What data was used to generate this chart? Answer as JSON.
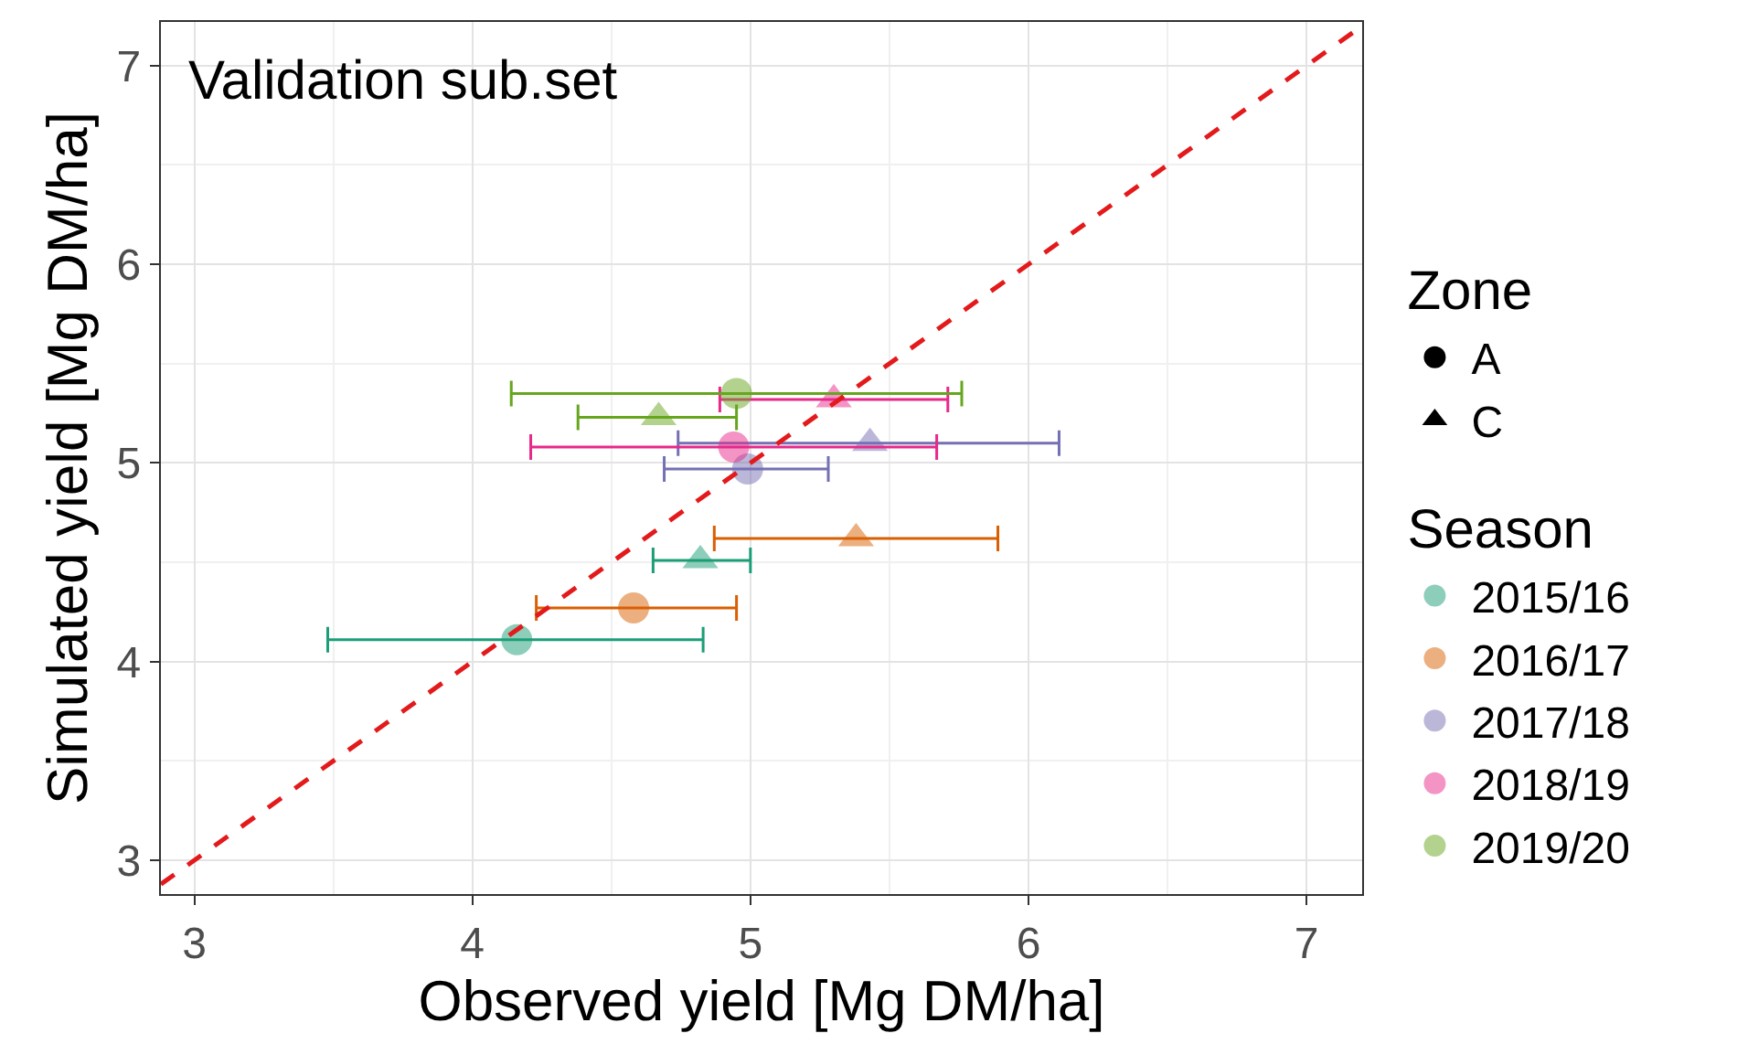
{
  "chart_data": {
    "type": "scatter",
    "xlabel": "Observed yield [Mg DM/ha]",
    "ylabel": "Simulated yield [Mg DM/ha]",
    "annotations": [
      "Validation sub.set"
    ],
    "legend_title": [
      "Zone",
      "Season"
    ],
    "xlim": [
      2.88,
      7.2
    ],
    "ylim": [
      2.83,
      7.22
    ],
    "xticks": [
      3,
      4,
      5,
      6,
      7
    ],
    "yticks": [
      3,
      4,
      5,
      6,
      7
    ],
    "grid": true,
    "legend": "right",
    "series": [
      {
        "name": "A",
        "marker": "circle",
        "color": "#000000"
      },
      {
        "name": "C",
        "marker": "triangle",
        "color": "#000000"
      },
      {
        "name": "2015/16",
        "marker": "circle",
        "color": "#1b9e77",
        "x": [
          4.16
        ],
        "values": [
          4.11
        ],
        "xerrors": [
          [
            3.48,
            4.83
          ]
        ]
      },
      {
        "marker": "triangle",
        "color": "#1b9e77",
        "x": [
          4.82
        ],
        "values": [
          4.51
        ],
        "xerrors": [
          [
            4.65,
            5.0
          ]
        ]
      },
      {
        "name": "2016/17",
        "marker": "circle",
        "color": "#d95f02",
        "x": [
          4.58
        ],
        "values": [
          4.27
        ],
        "xerrors": [
          [
            4.23,
            4.95
          ]
        ]
      },
      {
        "marker": "triangle",
        "color": "#d95f02",
        "x": [
          5.38
        ],
        "values": [
          4.62
        ],
        "xerrors": [
          [
            4.87,
            5.89
          ]
        ]
      },
      {
        "name": "2017/18",
        "marker": "circle",
        "color": "#7570b3",
        "x": [
          4.99
        ],
        "values": [
          4.97
        ],
        "xerrors": [
          [
            4.69,
            5.28
          ]
        ]
      },
      {
        "marker": "triangle",
        "color": "#7570b3",
        "x": [
          5.43
        ],
        "values": [
          5.1
        ],
        "xerrors": [
          [
            4.74,
            6.11
          ]
        ]
      },
      {
        "name": "2018/19",
        "marker": "circle",
        "color": "#e7298a",
        "x": [
          4.94
        ],
        "values": [
          5.08
        ],
        "xerrors": [
          [
            4.21,
            5.67
          ]
        ]
      },
      {
        "marker": "triangle",
        "color": "#e7298a",
        "x": [
          5.3
        ],
        "values": [
          5.32
        ],
        "xerrors": [
          [
            4.89,
            5.71
          ]
        ]
      },
      {
        "name": "2019/20",
        "marker": "circle",
        "color": "#66a61e",
        "x": [
          4.95
        ],
        "values": [
          5.35
        ],
        "xerrors": [
          [
            4.14,
            5.76
          ]
        ]
      },
      {
        "marker": "triangle",
        "color": "#66a61e",
        "x": [
          4.67
        ],
        "values": [
          5.23
        ],
        "xerrors": [
          [
            4.38,
            4.95
          ]
        ]
      },
      {
        "type": "line",
        "line_style": "dashed",
        "marker": "none",
        "color": "#e31a1c",
        "x": [
          2.88,
          7.2
        ],
        "values": [
          2.88,
          7.2
        ]
      }
    ]
  }
}
